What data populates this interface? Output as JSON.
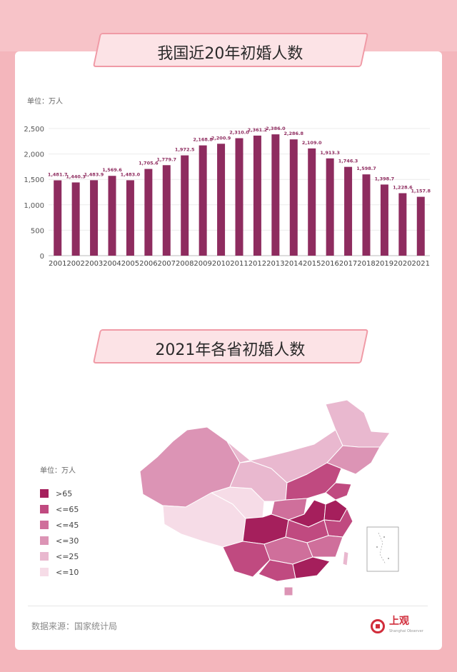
{
  "title1": "我国近20年初婚人数",
  "title2": "2021年各省初婚人数",
  "unit": "单位：万人",
  "unit_map": "单位：万人",
  "source": "数据来源：国家统计局",
  "logo": {
    "name": "上观",
    "sub": "Shanghai Observer"
  },
  "colors": {
    "bar": "#8e2c5f",
    "label": "#8e2c5f",
    "background": "#f4b6bc",
    "accent": "#f09aa6"
  },
  "chart_data": {
    "type": "bar",
    "title": "我国近20年初婚人数",
    "ylabel": "单位：万人",
    "ylim": [
      0,
      2500
    ],
    "yticks": [
      0,
      500,
      1000,
      1500,
      2000,
      2500
    ],
    "ytick_labels": [
      "0",
      "500",
      "1,000",
      "1,500",
      "2,000",
      "2,500"
    ],
    "categories": [
      "2001",
      "2002",
      "2003",
      "2004",
      "2005",
      "2006",
      "2007",
      "2008",
      "2009",
      "2010",
      "2011",
      "2012",
      "2013",
      "2014",
      "2015",
      "2016",
      "2017",
      "2018",
      "2019",
      "2020",
      "2021"
    ],
    "values": [
      1481.7,
      1440.3,
      1483.9,
      1569.6,
      1483.0,
      1705.6,
      1779.7,
      1972.5,
      2168.8,
      2200.9,
      2310.0,
      2361.2,
      2386.0,
      2286.8,
      2109.0,
      1913.3,
      1746.3,
      1598.7,
      1398.7,
      1228.6,
      1157.8
    ],
    "value_labels": [
      "1,481.7",
      "1,440.3",
      "1,483.9",
      "1,569.6",
      "1,483.0",
      "1,705.6",
      "1,779.7",
      "1,972.5",
      "2,168.8",
      "2,200.9",
      "2,310.0",
      "2,361.2",
      "2,386.0",
      "2,286.8",
      "2,109.0",
      "1,913.3",
      "1,746.3",
      "1,598.7",
      "1,398.7",
      "1,228.6",
      "1,157.8"
    ]
  },
  "map_legend": [
    {
      "label": ">65",
      "color": "#a51f5c"
    },
    {
      "label": "<=65",
      "color": "#c04a80"
    },
    {
      "label": "<=45",
      "color": "#cf6f9b"
    },
    {
      "label": "<=30",
      "color": "#dc94b5"
    },
    {
      "label": "<=25",
      "color": "#e9b8cf"
    },
    {
      "label": "<=10",
      "color": "#f6dce7"
    }
  ]
}
